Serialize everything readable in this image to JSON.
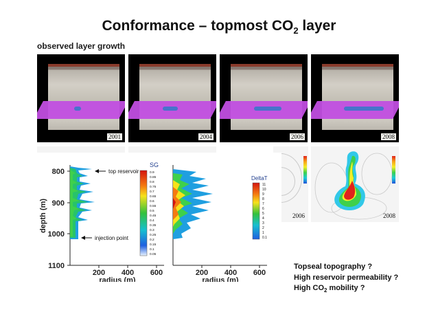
{
  "title": {
    "text": "Conformance – topmost CO",
    "subscript": "2",
    "suffix": " layer"
  },
  "subheading": "observed layer growth",
  "panels": [
    {
      "year": "2001"
    },
    {
      "year": "2004"
    },
    {
      "year": "2006"
    },
    {
      "year": "2008"
    }
  ],
  "maps": [
    {
      "year": "2006"
    },
    {
      "year": "2008"
    }
  ],
  "plot_left": {
    "ylabel": "depth (m)",
    "xlabel": "radius (m)",
    "yticks": [
      "800",
      "900",
      "1000",
      "1100"
    ],
    "xticks": [
      "200",
      "400",
      "600"
    ],
    "annotation_top": "top reservoir",
    "annotation_bottom": "injection point"
  },
  "legend_sg": {
    "title": "SG",
    "labels": [
      "0.9",
      "0.85",
      "0.8",
      "0.75",
      "0.7",
      "0.65",
      "0.6",
      "0.55",
      "0.5",
      "0.45",
      "0.4",
      "0.35",
      "0.3",
      "0.25",
      "0.2",
      "0.15",
      "0.1",
      "0.05"
    ]
  },
  "plot_right": {
    "xlabel": "radius (m)",
    "xticks": [
      "200",
      "400",
      "600"
    ]
  },
  "legend_dt": {
    "title": "DeltaT",
    "labels": [
      "11",
      "10",
      "9",
      "8",
      "7",
      "6",
      "5",
      "4",
      "3",
      "2",
      "1",
      "0.1"
    ]
  },
  "questions": {
    "q1": "Topseal topography ?",
    "q2": "High reservoir permeability ?",
    "q3_prefix": "High CO",
    "q3_sub": "2",
    "q3_suffix": " mobility ?"
  }
}
